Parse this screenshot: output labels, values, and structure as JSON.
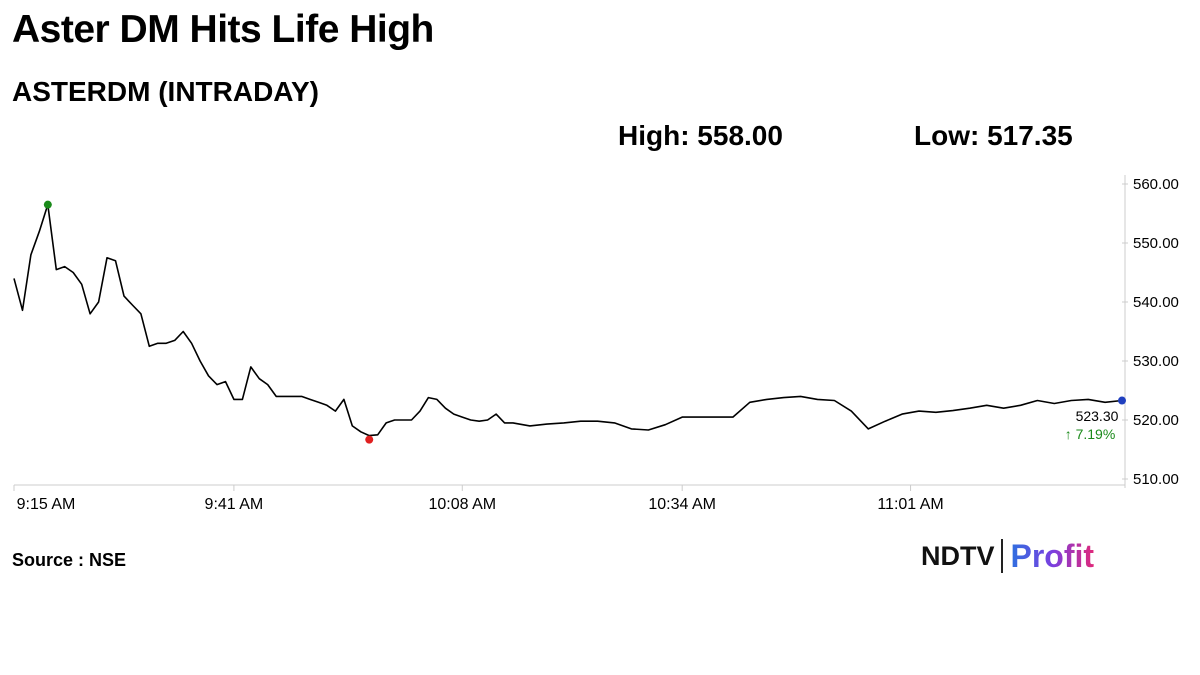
{
  "header": {
    "headline": "Aster DM Hits Life High",
    "subtitle": "ASTERDM (INTRADAY)",
    "high_label": "High: 558.00",
    "low_label": "Low: 517.35"
  },
  "footer": {
    "source": "Source : NSE",
    "logo_ndtv": "NDTV",
    "logo_profit": "Profit"
  },
  "colors": {
    "line": "#000000",
    "high_marker": "#1a8a1a",
    "low_marker": "#e02020",
    "last_marker": "#1f3fbf",
    "change_text": "#1a8a1a",
    "axis": "#cccccc"
  },
  "chart_data": {
    "type": "line",
    "title": "ASTERDM (INTRADAY)",
    "xlabel": "",
    "ylabel": "",
    "ylim": [
      510,
      560
    ],
    "xlim": [
      "9:15",
      "11:26"
    ],
    "grid": false,
    "y_ticks": [
      "510.00",
      "520.00",
      "530.00",
      "540.00",
      "550.00",
      "560.00"
    ],
    "x_ticks": [
      {
        "t": "9:15",
        "label": "9:15 AM"
      },
      {
        "t": "9:41",
        "label": "9:41 AM"
      },
      {
        "t": "10:08",
        "label": "10:08 AM"
      },
      {
        "t": "10:34",
        "label": "10:34 AM"
      },
      {
        "t": "11:01",
        "label": "11:01 AM"
      }
    ],
    "series": [
      {
        "x": [
          "9:15",
          "9:16",
          "9:17",
          "9:18",
          "9:19",
          "9:20",
          "9:21",
          "9:22",
          "9:23",
          "9:24",
          "9:25",
          "9:26",
          "9:27",
          "9:28",
          "9:29",
          "9:30",
          "9:31",
          "9:32",
          "9:33",
          "9:34",
          "9:35",
          "9:36",
          "9:37",
          "9:38",
          "9:39",
          "9:40",
          "9:41",
          "9:42",
          "9:43",
          "9:44",
          "9:45",
          "9:46",
          "9:47",
          "9:48",
          "9:49",
          "9:50",
          "9:51",
          "9:52",
          "9:53",
          "9:54",
          "9:55",
          "9:56",
          "9:57",
          "9:58",
          "9:59",
          "10:00",
          "10:01",
          "10:02",
          "10:03",
          "10:04",
          "10:05",
          "10:06",
          "10:07",
          "10:08",
          "10:09",
          "10:10",
          "10:11",
          "10:12",
          "10:13",
          "10:14",
          "10:16",
          "10:18",
          "10:20",
          "10:22",
          "10:24",
          "10:26",
          "10:28",
          "10:30",
          "10:32",
          "10:34",
          "10:36",
          "10:38",
          "10:40",
          "10:42",
          "10:44",
          "10:46",
          "10:48",
          "10:50",
          "10:52",
          "10:54",
          "10:56",
          "10:58",
          "11:00",
          "11:02",
          "11:04",
          "11:06",
          "11:08",
          "11:10",
          "11:12",
          "11:14",
          "11:16",
          "11:18",
          "11:20",
          "11:22",
          "11:24",
          "11:26"
        ],
        "values": [
          544,
          538.6,
          548,
          552,
          556.5,
          545.5,
          546,
          545,
          543,
          538,
          540,
          547.5,
          547,
          541,
          539.5,
          538,
          532.5,
          533,
          533,
          533.5,
          535,
          533,
          530,
          527.5,
          526,
          526.5,
          523.5,
          523.5,
          529,
          527,
          526,
          524,
          524,
          524,
          524,
          523.5,
          523,
          522.5,
          521.5,
          523.5,
          519,
          518,
          517.35,
          517.5,
          519.5,
          520,
          520,
          520,
          521.5,
          523.8,
          523.5,
          522,
          521,
          520.5,
          520,
          519.8,
          520,
          521,
          519.5,
          519.5,
          519,
          519.3,
          519.5,
          519.8,
          519.8,
          519.5,
          518.5,
          518.3,
          519.2,
          520.5,
          520.5,
          520.5,
          520.5,
          523,
          523.5,
          523.8,
          524,
          523.5,
          523.3,
          521.5,
          518.5,
          519.8,
          521,
          521.5,
          521.3,
          521.6,
          522,
          522.5,
          522,
          522.5,
          523.3,
          522.8,
          523.3,
          523.5,
          523,
          523.3
        ]
      }
    ],
    "annotations": {
      "high_point": {
        "t": "9:19",
        "value": 558.0
      },
      "low_point": {
        "t": "9:57",
        "value": 517.35
      },
      "last_price": "523.30",
      "change": "↑ 7.19%"
    }
  }
}
